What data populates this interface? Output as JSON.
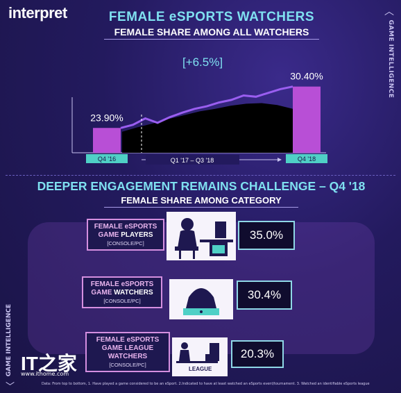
{
  "logo": "interpret",
  "header": {
    "title": "FEMALE eSPORTS WATCHERS",
    "subtitle": "FEMALE SHARE AMONG ALL WATCHERS",
    "side_label": "GAME INTELLIGENCE"
  },
  "colors": {
    "accent_cyan": "#7fe0f0",
    "bar_purple": "#b84fd6",
    "line_purple": "#9a5ef0",
    "label_teal": "#4fd0c6",
    "area_black": "#000000"
  },
  "chart_data": {
    "type": "bar",
    "title": "FEMALE SHARE AMONG ALL WATCHERS",
    "categories": [
      "Q4 '16",
      "Q4 '18"
    ],
    "values": [
      23.9,
      30.4
    ],
    "value_labels": [
      "23.90%",
      "30.40%"
    ],
    "change_label": "[+6.5%]",
    "period_label": "Q1 '17 – Q3 '18",
    "trend_line": [
      23.9,
      24.4,
      25.4,
      24.7,
      25.6,
      26.3,
      26.9,
      27.3,
      27.9,
      28.3,
      29.0,
      28.8,
      29.4,
      30.0,
      30.4
    ],
    "trend_area": [
      23.3,
      24.0,
      24.6,
      25.3,
      25.9,
      26.5,
      26.9,
      27.4,
      27.7,
      27.8,
      27.5,
      26.9
    ],
    "ylim": [
      20,
      32
    ],
    "grid": false,
    "legend": "none"
  },
  "section2": {
    "title": "DEEPER ENGAGEMENT REMAINS CHALLENGE – Q4 '18",
    "subtitle": "FEMALE SHARE AMONG CATEGORY"
  },
  "categories": [
    {
      "line1": "FEMALE eSPORTS",
      "line2": "GAME ",
      "line2b": "PLAYERS",
      "line3": "",
      "sub": "[CONSOLE/PC]",
      "value": "35.0%",
      "icon": "gamer-at-desk-icon"
    },
    {
      "line1": "FEMALE eSPORTS",
      "line2": "GAME ",
      "line2b": "WATCHERS",
      "line3": "",
      "sub": "[CONSOLE/PC]",
      "value": "30.4%",
      "icon": "hooded-watcher-laptop-icon"
    },
    {
      "line1": "FEMALE eSPORTS",
      "line2": "GAME LEAGUE",
      "line2b": "",
      "line3": "WATCHERS",
      "sub": "[CONSOLE/PC]",
      "value": "20.3%",
      "icon": "league-desk-icon",
      "icon_label": "LEAGUE"
    }
  ],
  "footer": {
    "note": "Data: From top to bottom, 1. Have played a game considered to be an eSport. 2.Indicated to have at least watched an eSports event/tournament. 3. Watched an identifiable eSports league",
    "side_label": "GAME INTELLIGENCE",
    "watermark_logo": "IT之家",
    "watermark_url": "www.ithome.com"
  }
}
